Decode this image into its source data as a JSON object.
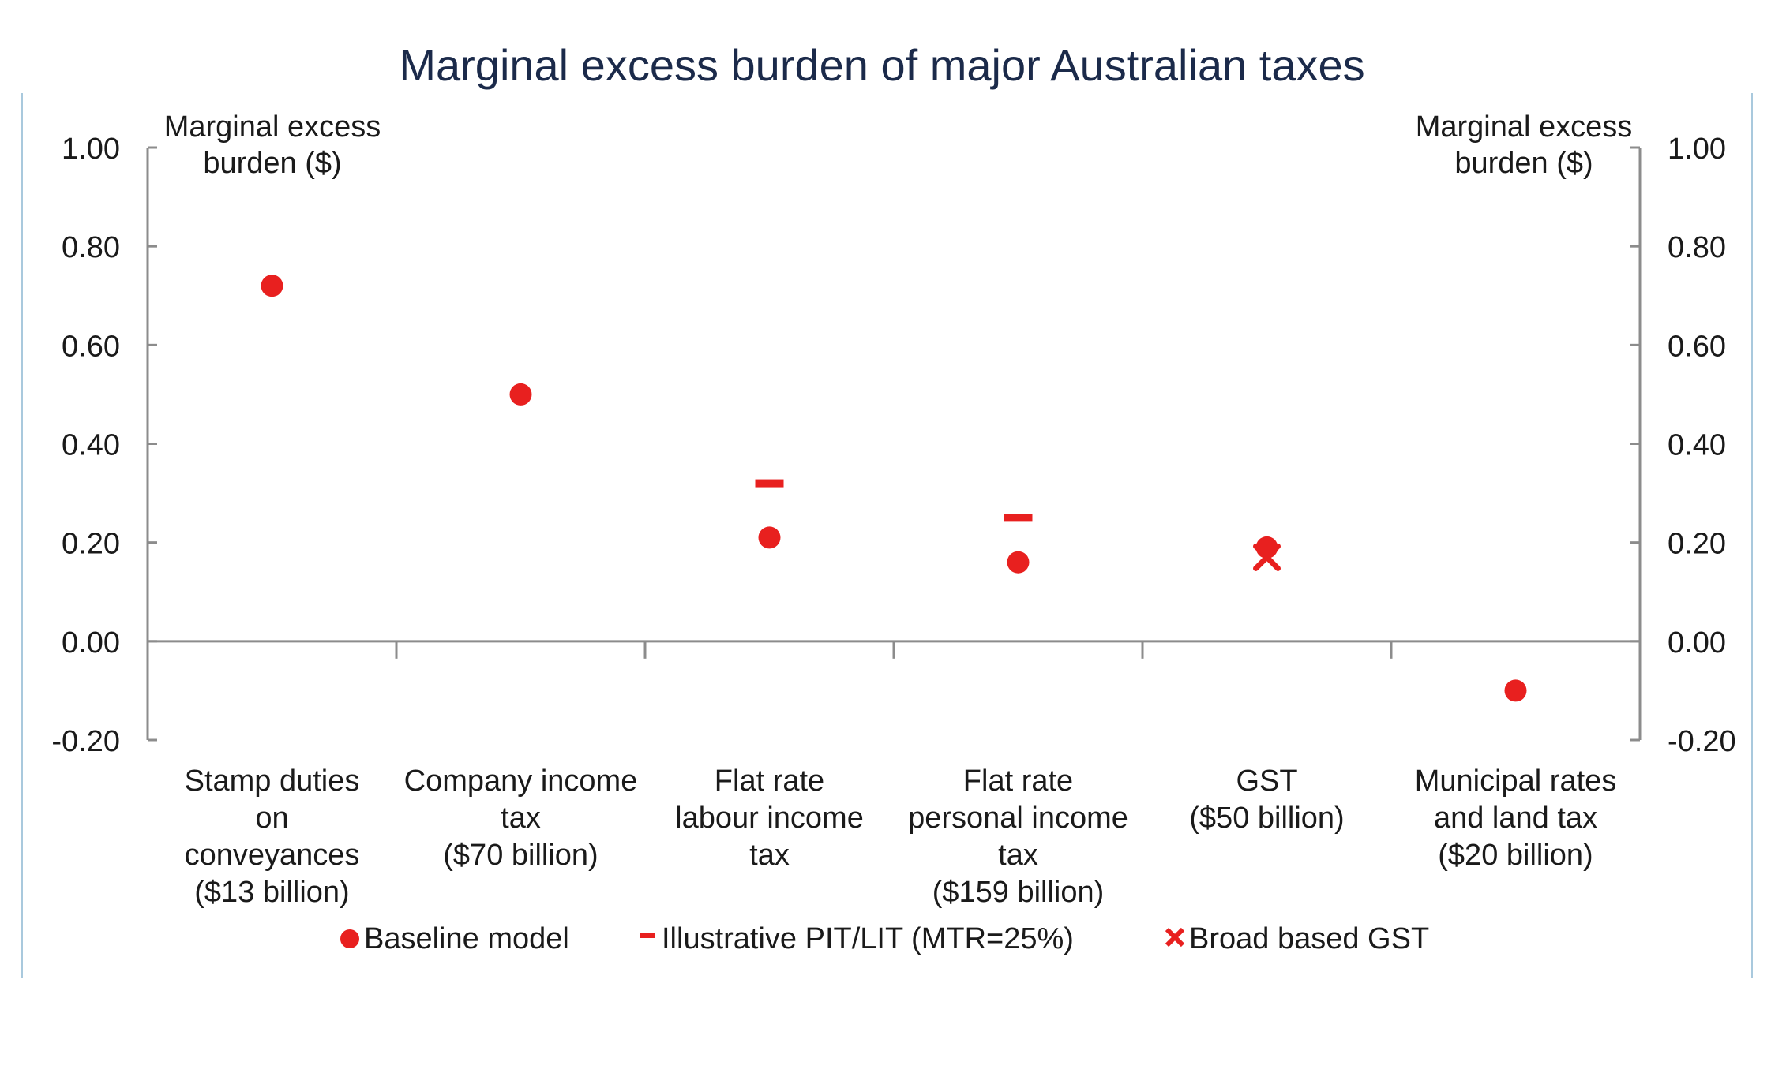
{
  "chart_data": {
    "type": "scatter",
    "title": "Marginal excess burden of major Australian taxes",
    "ylabel_left": [
      "Marginal excess",
      "burden ($)"
    ],
    "ylabel_right": [
      "Marginal excess",
      "burden ($)"
    ],
    "ylim": [
      -0.2,
      1.0
    ],
    "yticks": [
      "1.00",
      "0.80",
      "0.60",
      "0.40",
      "0.20",
      "0.00",
      "-0.20"
    ],
    "ytick_values": [
      1.0,
      0.8,
      0.6,
      0.4,
      0.2,
      0.0,
      -0.2
    ],
    "grid": false,
    "legend_position": "bottom",
    "categories": [
      [
        "Stamp duties",
        "on",
        "conveyances",
        "($13 billion)"
      ],
      [
        "Company income",
        "tax",
        "($70 billion)"
      ],
      [
        "Flat rate",
        "labour income",
        "tax"
      ],
      [
        "Flat rate",
        "personal income",
        "tax",
        "($159 billion)"
      ],
      [
        "GST",
        "($50 billion)"
      ],
      [
        "Municipal rates",
        "and land tax",
        "($20 billion)"
      ]
    ],
    "series": [
      {
        "name": "Baseline model",
        "marker": "circle",
        "color": "#e8201f",
        "values": [
          0.72,
          0.5,
          0.21,
          0.16,
          0.19,
          -0.1
        ]
      },
      {
        "name": "Illustrative PIT/LIT (MTR=25%)",
        "marker": "dash",
        "color": "#e8201f",
        "values": [
          null,
          null,
          0.32,
          0.25,
          null,
          null
        ]
      },
      {
        "name": "Broad based GST",
        "marker": "cross",
        "color": "#e8201f",
        "values": [
          null,
          null,
          null,
          null,
          0.17,
          null
        ]
      }
    ]
  },
  "colors": {
    "title": "#1b2a4a",
    "axis": "#8c8c8c",
    "text": "#1a1a1a",
    "frame": "#a9c9dd",
    "marker": "#e8201f"
  }
}
